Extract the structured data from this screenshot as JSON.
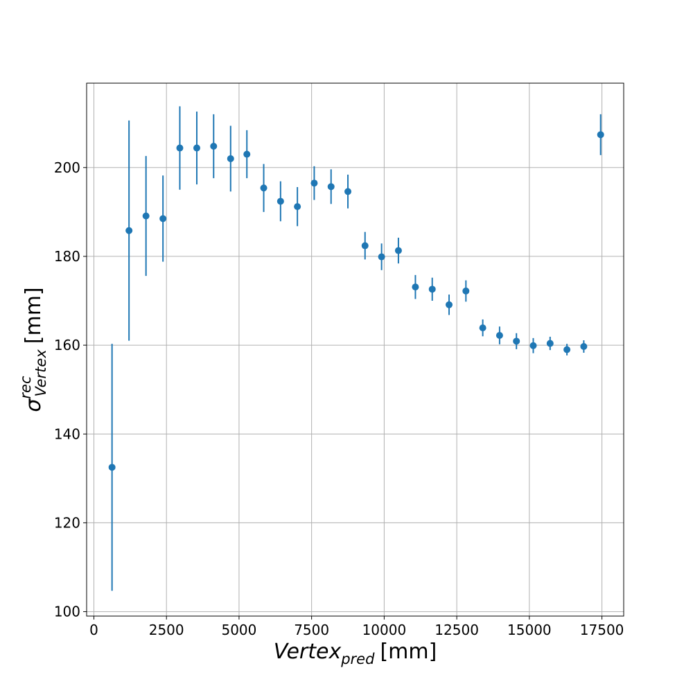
{
  "chart_data": {
    "type": "scatter",
    "subtype": "errorbar",
    "title": "",
    "xlabel": {
      "main": "Vertex",
      "sub": "pred",
      "unit": "[mm]"
    },
    "ylabel": {
      "main": "σ",
      "sup": "rec",
      "sub": "Vertex",
      "unit": "[mm]"
    },
    "xlim": [
      -250,
      18250
    ],
    "ylim": [
      99,
      219
    ],
    "xticks": [
      0,
      2500,
      5000,
      7500,
      10000,
      12500,
      15000,
      17500
    ],
    "yticks": [
      100,
      120,
      140,
      160,
      180,
      200
    ],
    "grid": true,
    "legend": "none",
    "color": "#1f77b4",
    "series": [
      {
        "x": [
          625,
          1210,
          1795,
          2380,
          2960,
          3545,
          4125,
          4710,
          5270,
          5850,
          6430,
          7010,
          7590,
          8170,
          8750,
          9340,
          9910,
          10490,
          11075,
          11655,
          12235,
          12815,
          13395,
          13975,
          14555,
          15135,
          15715,
          16295,
          16875,
          17455
        ],
        "y": [
          132.5,
          185.8,
          189.1,
          188.5,
          204.4,
          204.4,
          204.8,
          202.0,
          203.0,
          195.4,
          192.4,
          191.2,
          196.5,
          195.7,
          194.6,
          182.4,
          179.9,
          181.3,
          173.1,
          172.6,
          169.1,
          172.2,
          163.9,
          162.2,
          160.9,
          159.9,
          160.4,
          159.0,
          159.7,
          207.4
        ],
        "err": [
          27.8,
          24.8,
          13.5,
          9.7,
          9.4,
          8.2,
          7.2,
          7.4,
          5.4,
          5.4,
          4.5,
          4.4,
          3.8,
          3.9,
          3.8,
          3.1,
          3.0,
          2.9,
          2.7,
          2.6,
          2.3,
          2.4,
          1.9,
          2.0,
          1.8,
          1.7,
          1.5,
          1.3,
          1.4,
          4.6
        ]
      }
    ]
  }
}
